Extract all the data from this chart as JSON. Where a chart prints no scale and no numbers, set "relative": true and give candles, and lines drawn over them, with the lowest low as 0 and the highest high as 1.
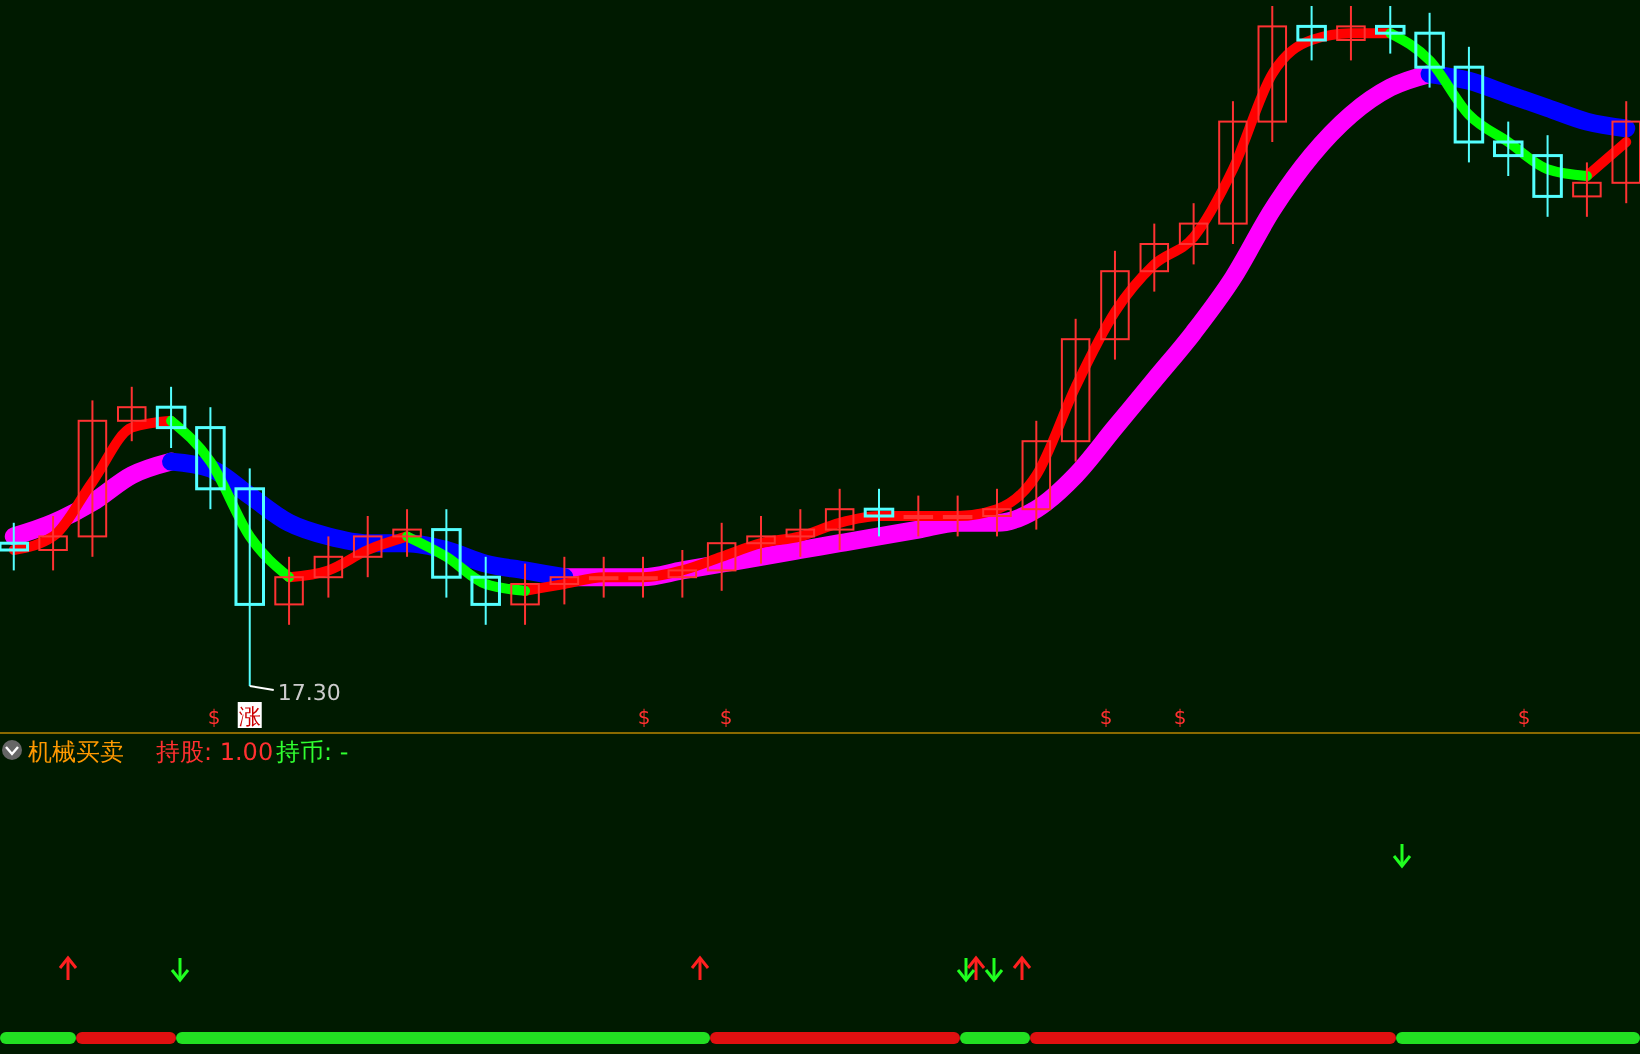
{
  "chart_data": {
    "type": "candlestick",
    "relative": true,
    "categories": [
      null,
      null,
      null,
      null,
      null,
      null,
      null,
      null,
      null,
      null,
      null,
      null,
      null,
      null,
      null,
      null,
      null,
      null,
      null,
      null,
      null,
      null,
      null,
      null,
      null,
      null,
      null,
      null,
      null,
      null,
      null,
      null,
      null,
      null,
      null,
      null,
      null,
      null,
      null,
      null,
      null,
      null
    ],
    "ohlc": [
      [
        0.21,
        0.24,
        0.17,
        0.2
      ],
      [
        0.2,
        0.25,
        0.17,
        0.22
      ],
      [
        0.22,
        0.42,
        0.19,
        0.39
      ],
      [
        0.39,
        0.44,
        0.36,
        0.41
      ],
      [
        0.41,
        0.44,
        0.35,
        0.38
      ],
      [
        0.38,
        0.41,
        0.26,
        0.29
      ],
      [
        0.29,
        0.32,
        0.0,
        0.12
      ],
      [
        0.12,
        0.19,
        0.09,
        0.16
      ],
      [
        0.16,
        0.22,
        0.13,
        0.19
      ],
      [
        0.19,
        0.25,
        0.16,
        0.22
      ],
      [
        0.22,
        0.26,
        0.19,
        0.23
      ],
      [
        0.23,
        0.26,
        0.13,
        0.16
      ],
      [
        0.16,
        0.19,
        0.09,
        0.12
      ],
      [
        0.12,
        0.18,
        0.09,
        0.15
      ],
      [
        0.15,
        0.19,
        0.12,
        0.16
      ],
      [
        0.16,
        0.19,
        0.13,
        0.16
      ],
      [
        0.16,
        0.19,
        0.13,
        0.16
      ],
      [
        0.16,
        0.2,
        0.13,
        0.17
      ],
      [
        0.17,
        0.24,
        0.14,
        0.21
      ],
      [
        0.21,
        0.25,
        0.18,
        0.22
      ],
      [
        0.22,
        0.26,
        0.19,
        0.23
      ],
      [
        0.23,
        0.29,
        0.2,
        0.26
      ],
      [
        0.26,
        0.29,
        0.22,
        0.25
      ],
      [
        0.25,
        0.28,
        0.22,
        0.25
      ],
      [
        0.25,
        0.28,
        0.22,
        0.25
      ],
      [
        0.25,
        0.29,
        0.22,
        0.26
      ],
      [
        0.26,
        0.39,
        0.23,
        0.36
      ],
      [
        0.36,
        0.54,
        0.33,
        0.51
      ],
      [
        0.51,
        0.64,
        0.48,
        0.61
      ],
      [
        0.61,
        0.68,
        0.58,
        0.65
      ],
      [
        0.65,
        0.71,
        0.62,
        0.68
      ],
      [
        0.68,
        0.86,
        0.65,
        0.83
      ],
      [
        0.83,
        1.0,
        0.8,
        0.97
      ],
      [
        0.97,
        1.0,
        0.92,
        0.95
      ],
      [
        0.95,
        1.0,
        0.92,
        0.97
      ],
      [
        0.97,
        1.0,
        0.93,
        0.96
      ],
      [
        0.96,
        0.99,
        0.88,
        0.91
      ],
      [
        0.91,
        0.94,
        0.77,
        0.8
      ],
      [
        0.8,
        0.83,
        0.75,
        0.78
      ],
      [
        0.78,
        0.81,
        0.69,
        0.72
      ],
      [
        0.72,
        0.77,
        0.69,
        0.74
      ],
      [
        0.74,
        0.86,
        0.71,
        0.83
      ]
    ],
    "series": [
      {
        "type": "line",
        "color": "#ff00ff",
        "values": [
          0.22,
          0.24,
          0.27,
          0.31,
          0.33,
          null,
          null,
          null,
          null,
          null,
          null,
          null,
          null,
          null,
          0.16,
          0.16,
          0.16,
          0.17,
          0.18,
          0.19,
          0.2,
          0.21,
          0.22,
          0.23,
          0.24,
          0.24,
          0.26,
          0.31,
          0.38,
          0.45,
          0.52,
          0.6,
          0.7,
          0.78,
          0.84,
          0.88,
          0.9,
          null,
          null,
          null,
          null,
          null
        ]
      },
      {
        "type": "line",
        "color": "#0000ff",
        "values": [
          null,
          null,
          null,
          null,
          0.33,
          0.32,
          0.28,
          0.24,
          0.22,
          0.21,
          0.21,
          0.2,
          0.18,
          0.17,
          0.16,
          null,
          null,
          null,
          null,
          null,
          null,
          null,
          null,
          null,
          null,
          null,
          null,
          null,
          null,
          null,
          null,
          null,
          null,
          null,
          null,
          null,
          0.9,
          0.89,
          0.87,
          0.85,
          0.83,
          0.82
        ]
      },
      {
        "type": "line",
        "color": "#ff0000",
        "values": [
          0.2,
          0.22,
          0.3,
          0.38,
          0.39,
          null,
          null,
          0.16,
          0.17,
          0.2,
          0.22,
          null,
          null,
          0.14,
          0.15,
          0.16,
          0.16,
          0.17,
          0.19,
          0.21,
          0.22,
          0.24,
          0.25,
          0.25,
          0.25,
          0.26,
          0.31,
          0.44,
          0.55,
          0.62,
          0.66,
          0.76,
          0.9,
          0.95,
          0.96,
          0.96,
          null,
          null,
          null,
          null,
          0.75,
          0.8
        ]
      },
      {
        "type": "line",
        "color": "#00ff00",
        "values": [
          null,
          null,
          null,
          null,
          0.39,
          0.33,
          0.22,
          0.16,
          null,
          null,
          0.22,
          0.19,
          0.15,
          0.14,
          null,
          null,
          null,
          null,
          null,
          null,
          null,
          null,
          null,
          null,
          null,
          null,
          null,
          null,
          null,
          null,
          null,
          null,
          null,
          null,
          null,
          0.96,
          0.92,
          0.84,
          0.8,
          0.76,
          0.75,
          null
        ]
      }
    ],
    "annotations": [
      "17.30",
      "涨",
      "机械买卖",
      "持股: 1.00",
      "持币: -",
      "$",
      "$",
      "$",
      "$",
      "$",
      "$"
    ]
  }
}
